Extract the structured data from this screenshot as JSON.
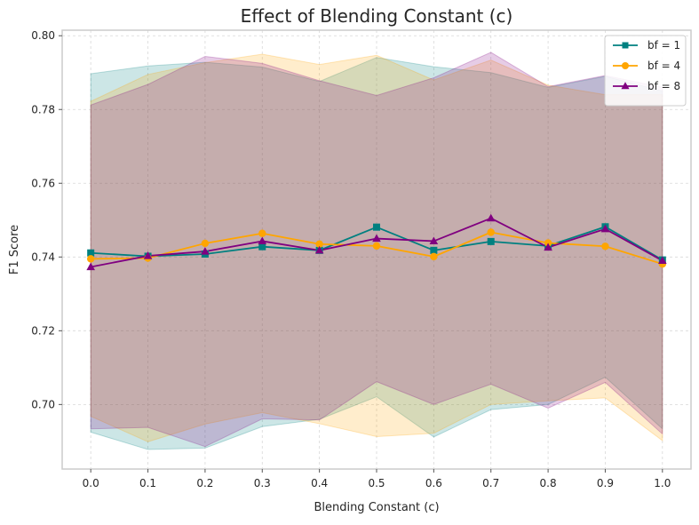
{
  "chart_data": {
    "type": "line",
    "title": "Effect of Blending Constant (c)",
    "xlabel": "Blending Constant (c)",
    "ylabel": "F1 Score",
    "x": [
      0.0,
      0.1,
      0.2,
      0.3,
      0.4,
      0.5,
      0.6,
      0.7,
      0.8,
      0.9,
      1.0
    ],
    "x_tick_labels": [
      "0.0",
      "0.1",
      "0.2",
      "0.3",
      "0.4",
      "0.5",
      "0.6",
      "0.7",
      "0.8",
      "0.9",
      "1.0"
    ],
    "y_ticks": [
      0.7,
      0.72,
      0.74,
      0.76,
      0.78,
      0.8
    ],
    "y_tick_labels": [
      "0.70",
      "0.72",
      "0.74",
      "0.76",
      "0.78",
      "0.80"
    ],
    "xlim": [
      -0.05,
      1.05
    ],
    "ylim": [
      0.6825,
      0.8015
    ],
    "grid": true,
    "legend_position": "top-right",
    "series": [
      {
        "name": "bf = 1",
        "color": "#008080",
        "marker": "square",
        "values": [
          0.7411,
          0.7402,
          0.7408,
          0.7428,
          0.7418,
          0.7481,
          0.7418,
          0.7442,
          0.743,
          0.7482,
          0.7392
        ],
        "band_upper": [
          0.7897,
          0.7918,
          0.7928,
          0.7915,
          0.7876,
          0.7941,
          0.7916,
          0.79,
          0.786,
          0.789,
          0.785
        ],
        "band_lower": [
          0.6925,
          0.6878,
          0.6882,
          0.694,
          0.696,
          0.7021,
          0.6912,
          0.6986,
          0.7,
          0.7074,
          0.6934
        ]
      },
      {
        "name": "bf = 4",
        "color": "#ffa500",
        "marker": "circle",
        "values": [
          0.7395,
          0.7397,
          0.7437,
          0.7464,
          0.7435,
          0.743,
          0.7401,
          0.7467,
          0.7438,
          0.7429,
          0.7381
        ],
        "band_upper": [
          0.7822,
          0.7895,
          0.7927,
          0.795,
          0.7922,
          0.7947,
          0.788,
          0.7934,
          0.7866,
          0.784,
          0.784
        ],
        "band_lower": [
          0.6968,
          0.6899,
          0.6947,
          0.6978,
          0.6948,
          0.6913,
          0.6922,
          0.7,
          0.701,
          0.7018,
          0.6902
        ]
      },
      {
        "name": "bf = 8",
        "color": "#800080",
        "marker": "triangle",
        "values": [
          0.7373,
          0.7403,
          0.7415,
          0.7443,
          0.7418,
          0.745,
          0.7443,
          0.7505,
          0.7426,
          0.7476,
          0.739
        ],
        "band_upper": [
          0.7812,
          0.7868,
          0.7944,
          0.7925,
          0.7878,
          0.7838,
          0.7886,
          0.7955,
          0.7862,
          0.7892,
          0.786
        ],
        "band_lower": [
          0.6934,
          0.6938,
          0.6886,
          0.6961,
          0.6958,
          0.7062,
          0.7,
          0.7055,
          0.699,
          0.706,
          0.692
        ]
      }
    ]
  }
}
